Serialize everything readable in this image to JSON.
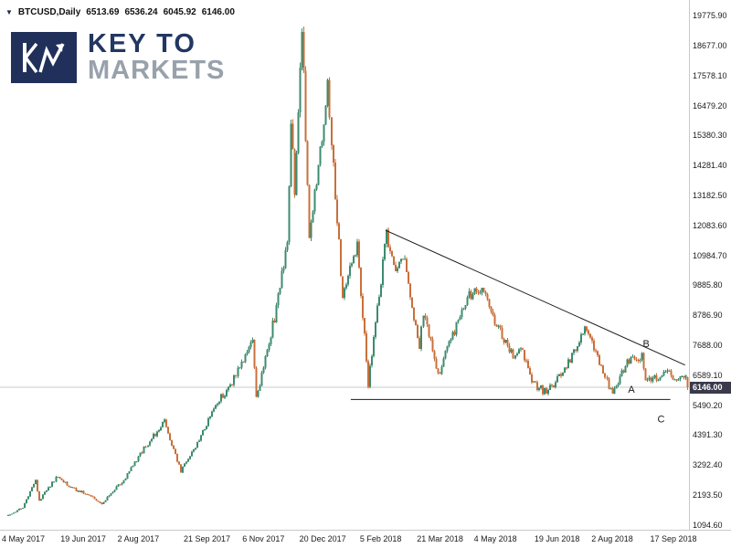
{
  "header": {
    "marker": "▼",
    "symbol": "BTCUSD,Daily",
    "open": "6513.69",
    "high": "6536.24",
    "low": "6045.92",
    "close": "6146.00"
  },
  "logo": {
    "monogram": "KM",
    "line1": "KEY TO",
    "line2": "MARKETS",
    "box_color": "#20305a",
    "line1_color": "#223761",
    "line2_color": "#99a1ab"
  },
  "chart_data": {
    "type": "candlestick",
    "symbol": "BTCUSD",
    "timeframe": "Daily",
    "last_candle": {
      "open": 6513.69,
      "high": 6536.24,
      "low": 6045.92,
      "close": 6146.0
    },
    "current_price": 6146.0,
    "price_tag": "6146.00",
    "bars_total": 371,
    "y_axis_labels": [
      "19775.90",
      "18677.00",
      "17578.10",
      "16479.20",
      "15380.30",
      "14281.40",
      "13182.50",
      "12083.60",
      "10984.70",
      "9885.80",
      "8786.90",
      "7688.00",
      "6589.10",
      "5490.20",
      "4391.30",
      "3292.40",
      "2193.50",
      "1094.60"
    ],
    "x_axis_labels": [
      {
        "label": "4 May 2017",
        "bar": 0
      },
      {
        "label": "19 Jun 2017",
        "bar": 32
      },
      {
        "label": "2 Aug 2017",
        "bar": 63
      },
      {
        "label": "21 Sep 2017",
        "bar": 99
      },
      {
        "label": "6 Nov 2017",
        "bar": 131
      },
      {
        "label": "20 Dec 2017",
        "bar": 162
      },
      {
        "label": "5 Feb 2018",
        "bar": 195
      },
      {
        "label": "21 Mar 2018",
        "bar": 226
      },
      {
        "label": "4 May 2018",
        "bar": 257
      },
      {
        "label": "19 Jun 2018",
        "bar": 290
      },
      {
        "label": "2 Aug 2018",
        "bar": 321
      },
      {
        "label": "17 Sep 2018",
        "bar": 353
      }
    ],
    "anchors": [
      [
        0,
        1430
      ],
      [
        8,
        1750
      ],
      [
        15,
        2720
      ],
      [
        17,
        1980
      ],
      [
        27,
        2920
      ],
      [
        34,
        2450
      ],
      [
        42,
        2250
      ],
      [
        51,
        1900
      ],
      [
        63,
        2750
      ],
      [
        74,
        3900
      ],
      [
        85,
        4900
      ],
      [
        94,
        3050
      ],
      [
        105,
        4350
      ],
      [
        114,
        5650
      ],
      [
        120,
        6050
      ],
      [
        133,
        7850
      ],
      [
        135,
        5750
      ],
      [
        145,
        8700
      ],
      [
        152,
        11500
      ],
      [
        154,
        16100
      ],
      [
        156,
        13500
      ],
      [
        160,
        19300
      ],
      [
        164,
        11600
      ],
      [
        169,
        14300
      ],
      [
        174,
        17050
      ],
      [
        182,
        9450
      ],
      [
        190,
        11400
      ],
      [
        196,
        6250
      ],
      [
        206,
        11700
      ],
      [
        211,
        10300
      ],
      [
        215,
        11050
      ],
      [
        224,
        7650
      ],
      [
        226,
        8950
      ],
      [
        234,
        6600
      ],
      [
        242,
        8050
      ],
      [
        250,
        9450
      ],
      [
        258,
        9800
      ],
      [
        266,
        8450
      ],
      [
        275,
        7250
      ],
      [
        279,
        7650
      ],
      [
        286,
        6250
      ],
      [
        293,
        5950
      ],
      [
        303,
        6750
      ],
      [
        314,
        8350
      ],
      [
        320,
        7500
      ],
      [
        327,
        6150
      ],
      [
        329,
        6000
      ],
      [
        337,
        7050
      ],
      [
        345,
        7350
      ],
      [
        347,
        6300
      ],
      [
        352,
        6500
      ],
      [
        359,
        6650
      ],
      [
        364,
        6450
      ],
      [
        369,
        6520
      ],
      [
        370,
        6146
      ]
    ],
    "annotations": {
      "trendline": {
        "from_bar": 206,
        "from_price": 11900,
        "to_bar": 369,
        "to_price": 6960
      },
      "support_line": {
        "from_bar": 187,
        "to_bar": 361,
        "price": 5700
      },
      "labels": [
        {
          "text": "A",
          "bar": 338,
          "price": 5950
        },
        {
          "text": "B",
          "bar": 346,
          "price": 7620
        },
        {
          "text": "C",
          "bar": 354,
          "price": 4850
        }
      ]
    },
    "colors": {
      "up": "#3d8b6e",
      "down": "#c8703b",
      "price_line": "#c8c8c8",
      "annotation": "#1a1a1a",
      "tag_bg": "#3a3a4c",
      "tag_text": "#ffffff"
    }
  }
}
